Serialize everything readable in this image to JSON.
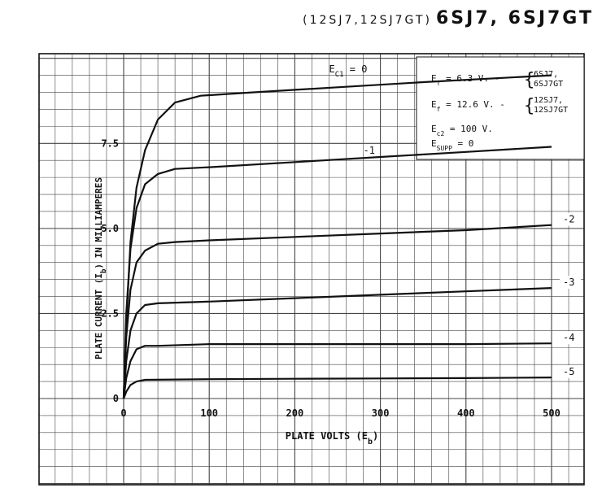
{
  "header": {
    "subtitle": "(12SJ7,12SJ7GT)",
    "title": "6SJ7, 6SJ7GT"
  },
  "chart_data": {
    "type": "line",
    "xlabel": "PLATE VOLTS (E",
    "xlabel_sub": "b",
    "xlabel_close": ")",
    "ylabel": "PLATE CURRENT (I",
    "ylabel_sub": "b",
    "ylabel_close": ") IN MILLIAMPERES",
    "xlim": [
      0,
      500
    ],
    "ylim": [
      0,
      10.4
    ],
    "xticks": [
      0,
      100,
      200,
      300,
      400,
      500
    ],
    "xtick_labels": [
      "0",
      "100",
      "200",
      "300",
      "400",
      "500"
    ],
    "yticks": [
      0,
      2.5,
      5.0,
      7.5
    ],
    "ytick_labels": [
      "0",
      "2.5",
      "5.0",
      "7.5"
    ],
    "grid": true,
    "series": [
      {
        "name": "E_c1 = 0",
        "label_main": "E",
        "label_sub": "C1",
        "label_rest": " = 0",
        "points": [
          [
            0,
            0
          ],
          [
            3,
            2.2
          ],
          [
            8,
            4.6
          ],
          [
            15,
            6.2
          ],
          [
            25,
            7.3
          ],
          [
            40,
            8.2
          ],
          [
            60,
            8.7
          ],
          [
            90,
            8.9
          ],
          [
            150,
            9.0
          ],
          [
            250,
            9.15
          ],
          [
            350,
            9.3
          ],
          [
            500,
            9.5
          ]
        ]
      },
      {
        "name": "-1",
        "label_main": "-1",
        "points": [
          [
            0,
            0
          ],
          [
            3,
            2.5
          ],
          [
            8,
            4.4
          ],
          [
            15,
            5.6
          ],
          [
            25,
            6.3
          ],
          [
            40,
            6.6
          ],
          [
            60,
            6.75
          ],
          [
            100,
            6.8
          ],
          [
            200,
            6.95
          ],
          [
            300,
            7.1
          ],
          [
            400,
            7.25
          ],
          [
            500,
            7.4
          ]
        ]
      },
      {
        "name": "-2",
        "label_main": "-2",
        "points": [
          [
            0,
            0
          ],
          [
            3,
            1.8
          ],
          [
            8,
            3.2
          ],
          [
            15,
            4.0
          ],
          [
            25,
            4.35
          ],
          [
            40,
            4.55
          ],
          [
            60,
            4.6
          ],
          [
            100,
            4.65
          ],
          [
            200,
            4.75
          ],
          [
            300,
            4.85
          ],
          [
            400,
            4.95
          ],
          [
            500,
            5.1
          ]
        ]
      },
      {
        "name": "-3",
        "label_main": "-3",
        "points": [
          [
            0,
            0
          ],
          [
            3,
            1.1
          ],
          [
            8,
            2.0
          ],
          [
            15,
            2.5
          ],
          [
            25,
            2.75
          ],
          [
            40,
            2.8
          ],
          [
            100,
            2.85
          ],
          [
            200,
            2.95
          ],
          [
            300,
            3.05
          ],
          [
            400,
            3.15
          ],
          [
            500,
            3.25
          ]
        ]
      },
      {
        "name": "-4",
        "label_main": "-4",
        "points": [
          [
            0,
            0
          ],
          [
            3,
            0.6
          ],
          [
            8,
            1.1
          ],
          [
            15,
            1.45
          ],
          [
            25,
            1.55
          ],
          [
            40,
            1.55
          ],
          [
            100,
            1.6
          ],
          [
            200,
            1.6
          ],
          [
            300,
            1.6
          ],
          [
            400,
            1.6
          ],
          [
            500,
            1.62
          ]
        ]
      },
      {
        "name": "-5",
        "label_main": "-5",
        "points": [
          [
            0,
            0
          ],
          [
            3,
            0.2
          ],
          [
            8,
            0.4
          ],
          [
            15,
            0.5
          ],
          [
            25,
            0.55
          ],
          [
            100,
            0.57
          ],
          [
            200,
            0.58
          ],
          [
            300,
            0.59
          ],
          [
            400,
            0.6
          ],
          [
            500,
            0.62
          ]
        ]
      }
    ],
    "annotations": [
      {
        "main": "E",
        "sub": "f",
        "rest": " =  6.3 V. -",
        "brace": [
          "6SJ7,",
          "6SJ7GT"
        ]
      },
      {
        "main": "E",
        "sub": "f",
        "rest": " = 12.6 V. -",
        "brace": [
          "12SJ7,",
          "12SJ7GT"
        ]
      },
      {
        "main": "E",
        "sub": "c2",
        "rest": " = 100 V."
      },
      {
        "main": "E",
        "sub": "SUPP",
        "rest": " = 0"
      }
    ]
  }
}
